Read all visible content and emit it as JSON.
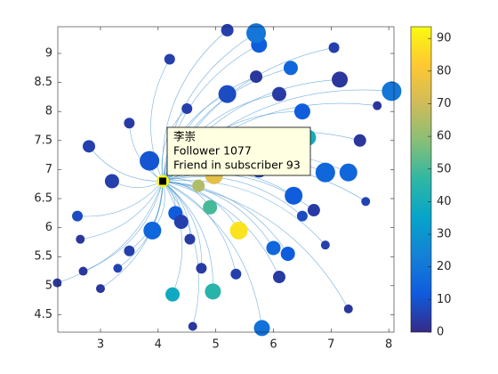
{
  "chart_data": {
    "type": "scatter",
    "x": [
      4.08,
      5.4,
      4.97,
      4.9,
      4.7,
      4.95,
      4.25,
      5.7,
      5.8,
      8.05,
      6.6,
      3.9,
      6.9,
      7.3,
      6.35,
      6.25,
      3.85,
      5.2,
      5.75,
      6.3,
      5.2,
      4.2,
      7.05,
      7.15,
      6.1,
      5.75,
      6.0,
      2.6,
      2.8,
      3.2,
      4.4,
      4.55,
      2.25,
      2.7,
      3.0,
      4.75,
      6.1,
      6.7,
      7.5,
      2.65,
      3.3,
      7.3,
      6.5,
      4.3,
      3.5,
      5.35,
      6.9,
      4.5,
      3.5,
      7.6,
      5.7,
      6.5,
      4.6,
      7.8
    ],
    "y": [
      6.8,
      5.95,
      6.9,
      6.35,
      6.72,
      4.9,
      4.85,
      9.35,
      4.27,
      8.35,
      7.55,
      5.95,
      6.95,
      6.95,
      6.55,
      5.55,
      7.15,
      8.3,
      9.15,
      8.75,
      9.4,
      8.9,
      9.1,
      8.55,
      8.3,
      7.0,
      5.65,
      6.2,
      7.4,
      6.8,
      6.1,
      5.8,
      5.05,
      5.25,
      4.95,
      5.3,
      5.15,
      6.3,
      7.5,
      5.8,
      5.3,
      4.6,
      6.2,
      6.25,
      5.6,
      5.2,
      5.7,
      8.05,
      7.8,
      6.45,
      8.6,
      8.0,
      4.3,
      8.1
    ],
    "sizes": [
      7,
      10,
      10,
      8,
      7,
      9,
      8,
      11,
      9,
      11,
      9,
      10,
      11,
      10,
      10,
      8,
      11,
      10,
      9,
      8,
      7,
      6,
      6,
      9,
      8,
      9,
      8,
      6,
      7,
      8,
      8,
      6,
      5,
      5,
      5,
      6,
      7,
      7,
      7,
      5,
      5,
      5,
      6,
      8,
      6,
      6,
      5,
      6,
      6,
      5,
      7,
      9,
      5,
      5
    ],
    "color_values": [
      93,
      88,
      75,
      50,
      65,
      45,
      38,
      20,
      18,
      20,
      40,
      15,
      15,
      15,
      12,
      12,
      10,
      8,
      12,
      15,
      5,
      5,
      5,
      3,
      4,
      6,
      15,
      8,
      5,
      5,
      5,
      4,
      3,
      3,
      3,
      4,
      4,
      4,
      3,
      3,
      6,
      3,
      8,
      12,
      5,
      5,
      5,
      5,
      4,
      6,
      3,
      12,
      3,
      3
    ],
    "xlim": [
      2.26,
      8.09
    ],
    "ylim": [
      4.2,
      9.46
    ],
    "xticks": [
      3,
      4,
      5,
      6,
      7,
      8
    ],
    "yticks": [
      4.5,
      5,
      5.5,
      6,
      6.5,
      7,
      7.5,
      8,
      8.5,
      9
    ],
    "clim": [
      0,
      93.6
    ],
    "cticks": [
      0,
      10,
      20,
      30,
      40,
      50,
      60,
      70,
      80,
      90
    ],
    "colormap": [
      "#352a87",
      "#0f5cdd",
      "#1481d6",
      "#06a4ca",
      "#2eb7a4",
      "#87bf77",
      "#d1bb59",
      "#fec832",
      "#f9fb0e"
    ],
    "edge_color": "#3a8fd0",
    "datatip": {
      "name": "李崇",
      "lines": [
        "Follower 1077",
        "Friend in subscriber 93"
      ]
    }
  }
}
